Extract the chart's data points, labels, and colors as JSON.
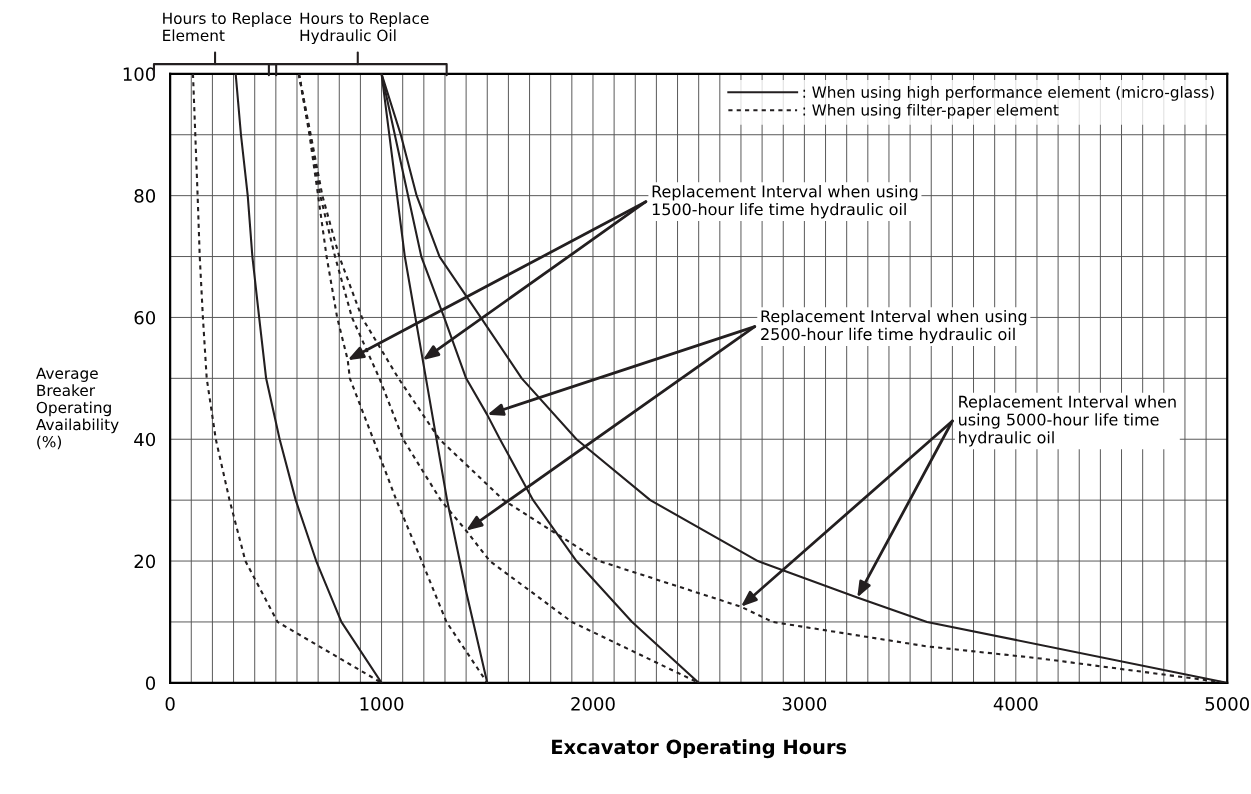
{
  "chart_data": {
    "type": "line",
    "xlabel": "Excavator Operating Hours",
    "ylabel": "Average\nBreaker\nOperating\nAvailability\n(%)",
    "xlim": [
      0,
      5000
    ],
    "ylim": [
      0,
      100
    ],
    "xticks": [
      0,
      1000,
      2000,
      3000,
      4000,
      5000
    ],
    "yticks": [
      0,
      20,
      40,
      60,
      80,
      100
    ],
    "grid": true,
    "legend": "top right",
    "marker": "none",
    "series": [
      {
        "name": ": When using high performance element (micro-glass)",
        "color": "#231f20",
        "line_style": "solid",
        "x": [
          310,
          335,
          367,
          389,
          421,
          454,
          518,
          594,
          691,
          810,
          1000
        ],
        "values": [
          100,
          90,
          80,
          70,
          60,
          50,
          40,
          30,
          20,
          10,
          0
        ]
      },
      {
        "name": ": When using filter-paper element",
        "color": "#231f20",
        "line_style": "dotted",
        "x": [
          108,
          119,
          130,
          140,
          155,
          173,
          216,
          281,
          356,
          508,
          1000
        ],
        "values": [
          100,
          90,
          80,
          70,
          60,
          50,
          40,
          30,
          20,
          10,
          0
        ]
      },
      {
        "color": "#231f20",
        "line_style": "solid",
        "x": [
          1000,
          1110,
          1195,
          1310,
          1400,
          1500
        ],
        "values": [
          100,
          70,
          53,
          30,
          15,
          0
        ]
      },
      {
        "color": "#231f20",
        "line_style": "dotted",
        "x": [
          609,
          659,
          700,
          740,
          790,
          840,
          850,
          961,
          1070,
          1190,
          1307,
          1500
        ],
        "values": [
          100,
          90,
          80,
          70,
          60,
          53,
          50,
          40,
          30,
          20,
          10,
          0
        ]
      },
      {
        "color": "#231f20",
        "line_style": "solid",
        "x": [
          1000,
          1188,
          1296,
          1400,
          1500,
          1560,
          1717,
          1922,
          2185,
          2500
        ],
        "values": [
          100,
          70,
          60,
          50,
          44,
          40,
          30,
          20,
          10,
          0
        ]
      },
      {
        "color": "#231f20",
        "line_style": "dotted",
        "x": [
          609,
          662,
          710,
          780,
          860,
          990,
          1102,
          1280,
          1400,
          1512,
          1900,
          2500
        ],
        "values": [
          100,
          90,
          80,
          70,
          60,
          50,
          40,
          30,
          25,
          20,
          10,
          0
        ]
      },
      {
        "color": "#231f20",
        "line_style": "solid",
        "x": [
          1000,
          1091,
          1166,
          1274,
          1469,
          1663,
          1922,
          2271,
          2780,
          3250,
          3580,
          5000
        ],
        "values": [
          100,
          90,
          80,
          70,
          60,
          50,
          40,
          30,
          20,
          14,
          10,
          0
        ]
      },
      {
        "color": "#231f20",
        "line_style": "dotted",
        "x": [
          609,
          665,
          720,
          800,
          907,
          1080,
          1274,
          1577,
          2030,
          2700,
          2850,
          3577,
          4117,
          5000
        ],
        "values": [
          100,
          90,
          80,
          70,
          60,
          50,
          40,
          30,
          20,
          12.5,
          10,
          6,
          4,
          0
        ]
      }
    ],
    "annotations": [
      {
        "text": "Replacement Interval when using\n1500-hour life time hydraulic oil",
        "x": 840,
        "y": 53
      },
      {
        "text": "Replacement Interval when using\n2500-hour life time hydraulic oil",
        "x": 1500,
        "y": 44
      },
      {
        "text": "Replacement Interval when\nusing 5000-hour life time\nhydraulic oil",
        "x": 2700,
        "y": 12.5
      },
      "Hours to Replace\nElement",
      "Hours to Replace\nHydraulic Oil"
    ]
  }
}
